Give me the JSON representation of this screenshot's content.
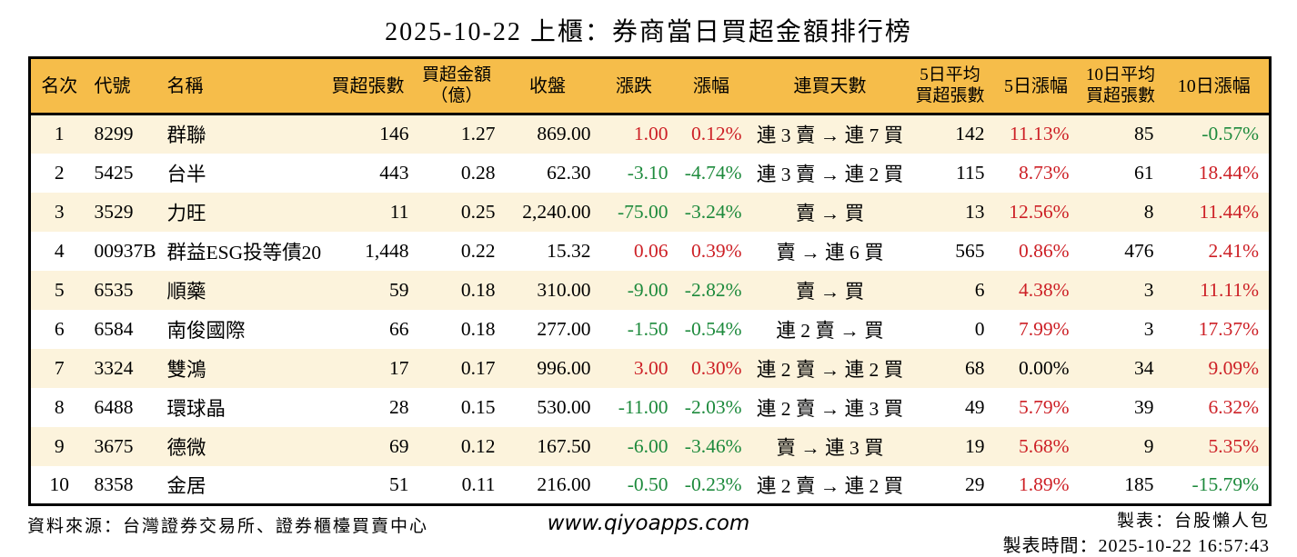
{
  "title": "2025-10-22 上櫃：券商當日買超金額排行榜",
  "colors": {
    "header_bg": "#F6BD4A",
    "row_alt_bg": "#FCF3DC",
    "up_red": "#CD2026",
    "down_green": "#1D8A3C",
    "border": "#000000"
  },
  "table": {
    "columns": [
      {
        "key": "rank",
        "label": "名次",
        "small": false
      },
      {
        "key": "code",
        "label": "代號",
        "small": false
      },
      {
        "key": "name",
        "label": "名稱",
        "small": false
      },
      {
        "key": "net_buy_volume",
        "label": "買超張數",
        "small": false
      },
      {
        "key": "net_buy_amount",
        "label": "買超金額\n（億）",
        "small": true
      },
      {
        "key": "close",
        "label": "收盤",
        "small": false
      },
      {
        "key": "change",
        "label": "漲跌",
        "small": false
      },
      {
        "key": "change_pct",
        "label": "漲幅",
        "small": false
      },
      {
        "key": "streak",
        "label": "連買天數",
        "small": false
      },
      {
        "key": "avg5_volume",
        "label": "5日平均\n買超張數",
        "small": true
      },
      {
        "key": "pct5",
        "label": "5日漲幅",
        "small": false
      },
      {
        "key": "avg10_volume",
        "label": "10日平均\n買超張數",
        "small": true
      },
      {
        "key": "pct10",
        "label": "10日漲幅",
        "small": false
      }
    ],
    "rows": [
      {
        "rank": "1",
        "code": "8299",
        "name": "群聯",
        "net_buy_volume": "146",
        "net_buy_amount": "1.27",
        "close": "869.00",
        "change": {
          "v": "1.00",
          "dir": "up"
        },
        "change_pct": {
          "v": "0.12%",
          "dir": "up"
        },
        "streak": "連 3 賣 → 連 7 買",
        "avg5_volume": "142",
        "pct5": {
          "v": "11.13%",
          "dir": "up"
        },
        "avg10_volume": "85",
        "pct10": {
          "v": "-0.57%",
          "dir": "down"
        }
      },
      {
        "rank": "2",
        "code": "5425",
        "name": "台半",
        "net_buy_volume": "443",
        "net_buy_amount": "0.28",
        "close": "62.30",
        "change": {
          "v": "-3.10",
          "dir": "down"
        },
        "change_pct": {
          "v": "-4.74%",
          "dir": "down"
        },
        "streak": "連 3 賣 → 連 2 買",
        "avg5_volume": "115",
        "pct5": {
          "v": "8.73%",
          "dir": "up"
        },
        "avg10_volume": "61",
        "pct10": {
          "v": "18.44%",
          "dir": "up"
        }
      },
      {
        "rank": "3",
        "code": "3529",
        "name": "力旺",
        "net_buy_volume": "11",
        "net_buy_amount": "0.25",
        "close": "2,240.00",
        "change": {
          "v": "-75.00",
          "dir": "down"
        },
        "change_pct": {
          "v": "-3.24%",
          "dir": "down"
        },
        "streak": "賣 → 買",
        "avg5_volume": "13",
        "pct5": {
          "v": "12.56%",
          "dir": "up"
        },
        "avg10_volume": "8",
        "pct10": {
          "v": "11.44%",
          "dir": "up"
        }
      },
      {
        "rank": "4",
        "code": "00937B",
        "name": "群益ESG投等債20",
        "net_buy_volume": "1,448",
        "net_buy_amount": "0.22",
        "close": "15.32",
        "change": {
          "v": "0.06",
          "dir": "up"
        },
        "change_pct": {
          "v": "0.39%",
          "dir": "up"
        },
        "streak": "賣 → 連 6 買",
        "avg5_volume": "565",
        "pct5": {
          "v": "0.86%",
          "dir": "up"
        },
        "avg10_volume": "476",
        "pct10": {
          "v": "2.41%",
          "dir": "up"
        }
      },
      {
        "rank": "5",
        "code": "6535",
        "name": "順藥",
        "net_buy_volume": "59",
        "net_buy_amount": "0.18",
        "close": "310.00",
        "change": {
          "v": "-9.00",
          "dir": "down"
        },
        "change_pct": {
          "v": "-2.82%",
          "dir": "down"
        },
        "streak": "賣 → 買",
        "avg5_volume": "6",
        "pct5": {
          "v": "4.38%",
          "dir": "up"
        },
        "avg10_volume": "3",
        "pct10": {
          "v": "11.11%",
          "dir": "up"
        }
      },
      {
        "rank": "6",
        "code": "6584",
        "name": "南俊國際",
        "net_buy_volume": "66",
        "net_buy_amount": "0.18",
        "close": "277.00",
        "change": {
          "v": "-1.50",
          "dir": "down"
        },
        "change_pct": {
          "v": "-0.54%",
          "dir": "down"
        },
        "streak": "連 2 賣 → 買",
        "avg5_volume": "0",
        "pct5": {
          "v": "7.99%",
          "dir": "up"
        },
        "avg10_volume": "3",
        "pct10": {
          "v": "17.37%",
          "dir": "up"
        }
      },
      {
        "rank": "7",
        "code": "3324",
        "name": "雙鴻",
        "net_buy_volume": "17",
        "net_buy_amount": "0.17",
        "close": "996.00",
        "change": {
          "v": "3.00",
          "dir": "up"
        },
        "change_pct": {
          "v": "0.30%",
          "dir": "up"
        },
        "streak": "連 2 賣 → 連 2 買",
        "avg5_volume": "68",
        "pct5": {
          "v": "0.00%",
          "dir": "flat"
        },
        "avg10_volume": "34",
        "pct10": {
          "v": "9.09%",
          "dir": "up"
        }
      },
      {
        "rank": "8",
        "code": "6488",
        "name": "環球晶",
        "net_buy_volume": "28",
        "net_buy_amount": "0.15",
        "close": "530.00",
        "change": {
          "v": "-11.00",
          "dir": "down"
        },
        "change_pct": {
          "v": "-2.03%",
          "dir": "down"
        },
        "streak": "連 2 賣 → 連 3 買",
        "avg5_volume": "49",
        "pct5": {
          "v": "5.79%",
          "dir": "up"
        },
        "avg10_volume": "39",
        "pct10": {
          "v": "6.32%",
          "dir": "up"
        }
      },
      {
        "rank": "9",
        "code": "3675",
        "name": "德微",
        "net_buy_volume": "69",
        "net_buy_amount": "0.12",
        "close": "167.50",
        "change": {
          "v": "-6.00",
          "dir": "down"
        },
        "change_pct": {
          "v": "-3.46%",
          "dir": "down"
        },
        "streak": "賣 → 連 3 買",
        "avg5_volume": "19",
        "pct5": {
          "v": "5.68%",
          "dir": "up"
        },
        "avg10_volume": "9",
        "pct10": {
          "v": "5.35%",
          "dir": "up"
        }
      },
      {
        "rank": "10",
        "code": "8358",
        "name": "金居",
        "net_buy_volume": "51",
        "net_buy_amount": "0.11",
        "close": "216.00",
        "change": {
          "v": "-0.50",
          "dir": "down"
        },
        "change_pct": {
          "v": "-0.23%",
          "dir": "down"
        },
        "streak": "連 2 賣 → 連 2 買",
        "avg5_volume": "29",
        "pct5": {
          "v": "1.89%",
          "dir": "up"
        },
        "avg10_volume": "185",
        "pct10": {
          "v": "-15.79%",
          "dir": "down"
        }
      }
    ]
  },
  "footer": {
    "source": "資料來源：台灣證券交易所、證券櫃檯買賣中心",
    "site": "www.qiyoapps.com",
    "maker": "製表：台股懶人包",
    "made_time": "製表時間：2025-10-22 16:57:43"
  }
}
